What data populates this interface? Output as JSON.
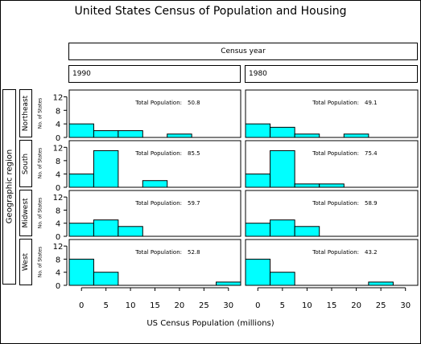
{
  "chart_data": {
    "type": "bar",
    "title": "United States Census of Population and Housing",
    "xlabel": "US Census Population (millions)",
    "ylabel": "No. of States",
    "column_header": "Census year",
    "row_header": "Geographic region",
    "columns": [
      "1990",
      "1980"
    ],
    "rows": [
      "Northeast",
      "South",
      "Midwest",
      "West"
    ],
    "annotation_label": "Total Population:",
    "x_ticks": [
      "0",
      "5",
      "10",
      "15",
      "20",
      "25",
      "30"
    ],
    "y_ticks": [
      "0",
      "4",
      "8",
      "12"
    ],
    "xlim": [
      -2.5,
      32.5
    ],
    "ylim": [
      0,
      14
    ],
    "bin_width": 5,
    "bin_centers": [
      0,
      5,
      10,
      15,
      20,
      25,
      30
    ],
    "panels": [
      {
        "region": "Northeast",
        "year": "1990",
        "total": "50.8",
        "counts": [
          4,
          2,
          2,
          0,
          1,
          0,
          0
        ]
      },
      {
        "region": "Northeast",
        "year": "1980",
        "total": "49.1",
        "counts": [
          4,
          3,
          1,
          0,
          1,
          0,
          0
        ]
      },
      {
        "region": "South",
        "year": "1990",
        "total": "85.5",
        "counts": [
          4,
          11,
          0,
          2,
          0,
          0,
          0
        ]
      },
      {
        "region": "South",
        "year": "1980",
        "total": "75.4",
        "counts": [
          4,
          11,
          1,
          1,
          0,
          0,
          0
        ]
      },
      {
        "region": "Midwest",
        "year": "1990",
        "total": "59.7",
        "counts": [
          4,
          5,
          3,
          0,
          0,
          0,
          0
        ]
      },
      {
        "region": "Midwest",
        "year": "1980",
        "total": "58.9",
        "counts": [
          4,
          5,
          3,
          0,
          0,
          0,
          0
        ]
      },
      {
        "region": "West",
        "year": "1990",
        "total": "52.8",
        "counts": [
          8,
          4,
          0,
          0,
          0,
          0,
          1
        ]
      },
      {
        "region": "West",
        "year": "1980",
        "total": "43.2",
        "counts": [
          8,
          4,
          0,
          0,
          0,
          1,
          0
        ]
      }
    ],
    "bar_color": "#00ffff",
    "grid": false
  }
}
